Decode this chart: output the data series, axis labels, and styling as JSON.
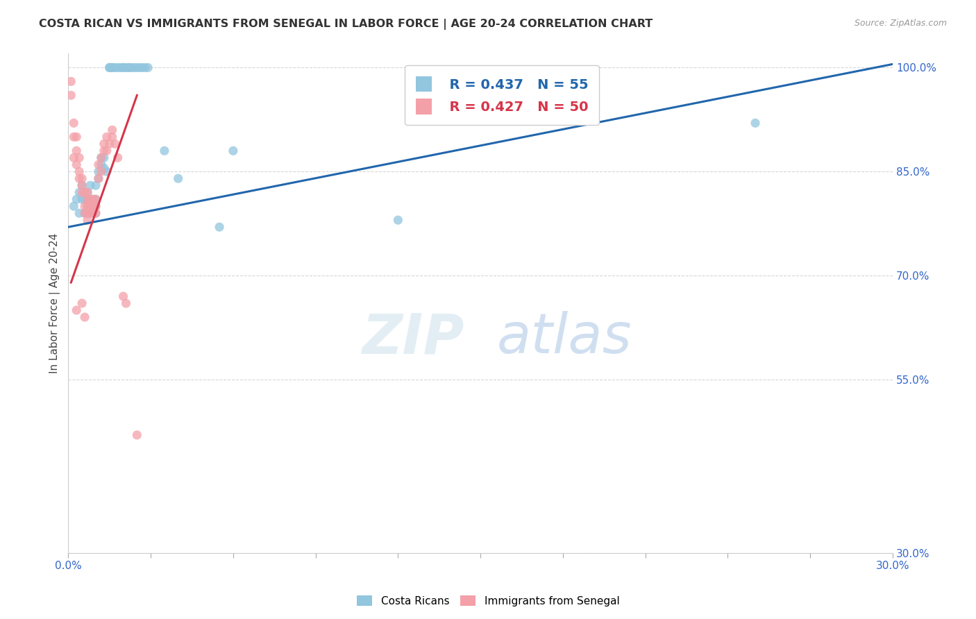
{
  "title": "COSTA RICAN VS IMMIGRANTS FROM SENEGAL IN LABOR FORCE | AGE 20-24 CORRELATION CHART",
  "source": "Source: ZipAtlas.com",
  "ylabel": "In Labor Force | Age 20-24",
  "xlim": [
    0.0,
    0.3
  ],
  "ylim": [
    0.3,
    1.02
  ],
  "ytick_vals": [
    0.3,
    0.55,
    0.7,
    0.85,
    1.0
  ],
  "xtick_vals": [
    0.0,
    0.03,
    0.06,
    0.09,
    0.12,
    0.15,
    0.18,
    0.21,
    0.24,
    0.27,
    0.3
  ],
  "background_color": "#ffffff",
  "grid_color": "#cccccc",
  "watermark_zip": "ZIP",
  "watermark_atlas": "atlas",
  "legend_r1": "R = 0.437",
  "legend_n1": "N = 55",
  "legend_r2": "R = 0.427",
  "legend_n2": "N = 50",
  "blue_color": "#92c5de",
  "blue_line": "#2166ac",
  "pink_color": "#f4a0a8",
  "pink_line": "#d6354a",
  "blue_scatter_x": [
    0.002,
    0.003,
    0.004,
    0.004,
    0.005,
    0.005,
    0.006,
    0.006,
    0.007,
    0.007,
    0.007,
    0.007,
    0.008,
    0.008,
    0.008,
    0.008,
    0.009,
    0.009,
    0.009,
    0.01,
    0.01,
    0.01,
    0.01,
    0.011,
    0.011,
    0.012,
    0.012,
    0.013,
    0.013,
    0.014,
    0.015,
    0.015,
    0.016,
    0.016,
    0.017,
    0.018,
    0.019,
    0.02,
    0.02,
    0.021,
    0.022,
    0.022,
    0.023,
    0.024,
    0.025,
    0.026,
    0.027,
    0.028,
    0.029,
    0.035,
    0.04,
    0.055,
    0.06,
    0.12,
    0.25
  ],
  "blue_scatter_y": [
    0.8,
    0.81,
    0.82,
    0.79,
    0.81,
    0.83,
    0.79,
    0.81,
    0.8,
    0.81,
    0.79,
    0.82,
    0.8,
    0.81,
    0.79,
    0.83,
    0.8,
    0.81,
    0.79,
    0.8,
    0.81,
    0.79,
    0.83,
    0.85,
    0.84,
    0.87,
    0.86,
    0.87,
    0.855,
    0.85,
    1.0,
    1.0,
    1.0,
    1.0,
    1.0,
    1.0,
    1.0,
    1.0,
    1.0,
    1.0,
    1.0,
    1.0,
    1.0,
    1.0,
    1.0,
    1.0,
    1.0,
    1.0,
    1.0,
    0.88,
    0.84,
    0.77,
    0.88,
    0.78,
    0.92
  ],
  "pink_scatter_x": [
    0.001,
    0.001,
    0.002,
    0.002,
    0.002,
    0.003,
    0.003,
    0.003,
    0.003,
    0.004,
    0.004,
    0.004,
    0.005,
    0.005,
    0.005,
    0.005,
    0.006,
    0.006,
    0.006,
    0.006,
    0.007,
    0.007,
    0.007,
    0.007,
    0.007,
    0.008,
    0.008,
    0.008,
    0.009,
    0.009,
    0.009,
    0.01,
    0.01,
    0.01,
    0.011,
    0.011,
    0.012,
    0.012,
    0.013,
    0.013,
    0.014,
    0.014,
    0.015,
    0.016,
    0.016,
    0.017,
    0.018,
    0.02,
    0.021,
    0.025
  ],
  "pink_scatter_y": [
    0.98,
    0.96,
    0.92,
    0.9,
    0.87,
    0.9,
    0.88,
    0.86,
    0.65,
    0.87,
    0.85,
    0.84,
    0.84,
    0.83,
    0.82,
    0.66,
    0.82,
    0.8,
    0.79,
    0.64,
    0.82,
    0.81,
    0.8,
    0.79,
    0.78,
    0.81,
    0.8,
    0.79,
    0.81,
    0.8,
    0.79,
    0.81,
    0.8,
    0.79,
    0.86,
    0.84,
    0.87,
    0.85,
    0.89,
    0.88,
    0.9,
    0.88,
    0.89,
    0.91,
    0.9,
    0.89,
    0.87,
    0.67,
    0.66,
    0.47
  ],
  "blue_trend_x": [
    0.0,
    0.3
  ],
  "blue_trend_y": [
    0.77,
    1.005
  ],
  "pink_trend_x": [
    0.001,
    0.025
  ],
  "pink_trend_y": [
    0.69,
    0.96
  ],
  "legend_blue_label": "Costa Ricans",
  "legend_pink_label": "Immigrants from Senegal"
}
